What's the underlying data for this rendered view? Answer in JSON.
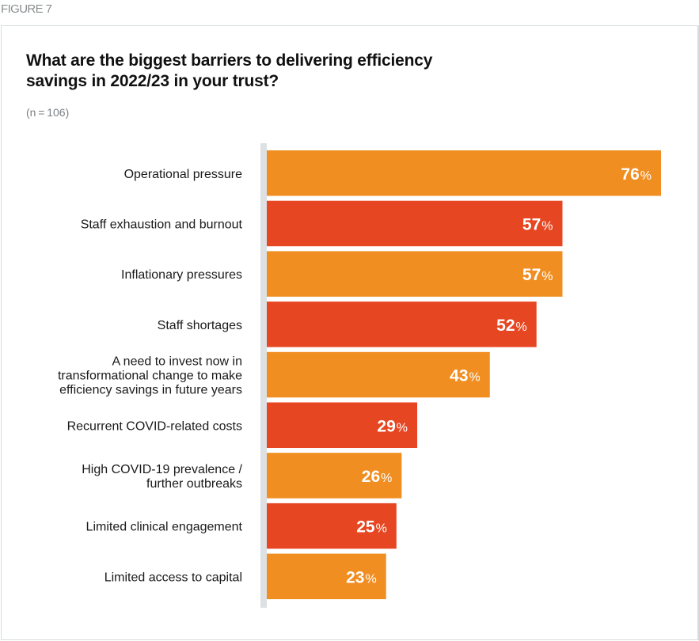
{
  "figure_label": "FIGURE 7",
  "chart_data": {
    "type": "bar",
    "orientation": "horizontal",
    "title": "What are the biggest barriers to delivering efficiency savings in 2022/23 in your trust?",
    "title_lines": [
      "What are the biggest barriers to delivering efficiency",
      "savings in 2022/23 in your trust?"
    ],
    "subtitle": "(n = 106)",
    "xlabel": "",
    "ylabel": "",
    "unit": "%",
    "xlim": [
      0,
      76
    ],
    "grid": false,
    "legend": "none",
    "categories": [
      [
        "Operational pressure"
      ],
      [
        "Staff exhaustion and burnout"
      ],
      [
        "Inflationary pressures"
      ],
      [
        "Staff shortages"
      ],
      [
        "A need to invest now in",
        "transformational change to make",
        "efficiency savings in future years"
      ],
      [
        "Recurrent COVID-related costs"
      ],
      [
        "High COVID-19 prevalence /",
        "further outbreaks"
      ],
      [
        "Limited clinical engagement"
      ],
      [
        "Limited access to capital"
      ]
    ],
    "values": [
      76,
      57,
      57,
      52,
      43,
      29,
      26,
      25,
      23
    ],
    "bar_colors": [
      "#f18e22",
      "#e64621",
      "#f18e22",
      "#e64621",
      "#f18e22",
      "#e64621",
      "#f18e22",
      "#e64621",
      "#f18e22"
    ],
    "axis_color": "#dde1e4"
  }
}
